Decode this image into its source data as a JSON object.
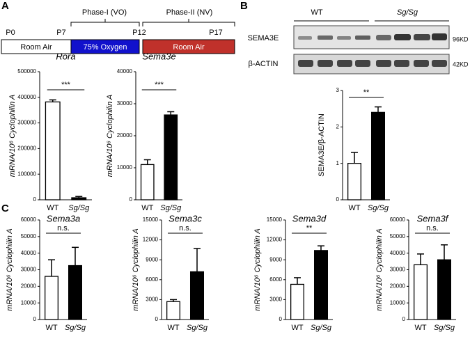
{
  "panel_labels": [
    "A",
    "B",
    "C"
  ],
  "timeline": {
    "phases": [
      "Phase-I (VO)",
      "Phase-II (NV)"
    ],
    "days": [
      "P0",
      "P7",
      "P12",
      "P17"
    ],
    "conditions": [
      "Room Air",
      "75% Oxygen",
      "Room Air"
    ]
  },
  "blot": {
    "groups": [
      "WT",
      "Sg/Sg"
    ],
    "proteins": [
      "SEMA3E",
      "β-ACTIN"
    ],
    "sizes": [
      "96KD",
      "42KD"
    ]
  },
  "chart_data": [
    {
      "type": "bar",
      "title": "Rora",
      "ylabel": "mRNA/10⁶ Cyclophilin A",
      "categories": [
        "WT",
        "Sg/Sg"
      ],
      "values": [
        382000,
        8000
      ],
      "errors": [
        8000,
        5000
      ],
      "colors": [
        "#ffffff",
        "#000000"
      ],
      "significance": "***",
      "ylim": [
        0,
        500000
      ],
      "yticks": [
        0,
        100000,
        200000,
        300000,
        400000,
        500000
      ]
    },
    {
      "type": "bar",
      "title": "Sema3e",
      "ylabel": "mRNA/10⁶ Cyclophilin A",
      "categories": [
        "WT",
        "Sg/Sg"
      ],
      "values": [
        11000,
        26500
      ],
      "errors": [
        1500,
        1000
      ],
      "colors": [
        "#ffffff",
        "#000000"
      ],
      "significance": "***",
      "ylim": [
        0,
        40000
      ],
      "yticks": [
        0,
        10000,
        20000,
        30000,
        40000
      ]
    },
    {
      "type": "bar",
      "ylabel": "SEMA3E/β-ACTIN",
      "categories": [
        "WT",
        "Sg/Sg"
      ],
      "values": [
        1.0,
        2.4
      ],
      "errors": [
        0.3,
        0.15
      ],
      "colors": [
        "#ffffff",
        "#000000"
      ],
      "significance": "**",
      "ylim": [
        0,
        3
      ],
      "yticks": [
        0,
        1,
        2,
        3
      ]
    },
    {
      "type": "bar",
      "title": "Sema3a",
      "ylabel": "mRNA/10⁶ Cyclophilin A",
      "categories": [
        "WT",
        "Sg/Sg"
      ],
      "values": [
        26000,
        32500
      ],
      "errors": [
        10000,
        11000
      ],
      "colors": [
        "#ffffff",
        "#000000"
      ],
      "significance": "n.s.",
      "ylim": [
        0,
        60000
      ],
      "yticks": [
        0,
        10000,
        20000,
        30000,
        40000,
        50000,
        60000
      ]
    },
    {
      "type": "bar",
      "title": "Sema3c",
      "ylabel": "mRNA/10⁶ Cyclophilin A",
      "categories": [
        "WT",
        "Sg/Sg"
      ],
      "values": [
        2700,
        7200
      ],
      "errors": [
        300,
        3500
      ],
      "colors": [
        "#ffffff",
        "#000000"
      ],
      "significance": "n.s.",
      "ylim": [
        0,
        15000
      ],
      "yticks": [
        0,
        3000,
        6000,
        9000,
        12000,
        15000
      ]
    },
    {
      "type": "bar",
      "title": "Sema3d",
      "ylabel": "mRNA/10⁶ Cyclophilin A",
      "categories": [
        "WT",
        "Sg/Sg"
      ],
      "values": [
        5300,
        10400
      ],
      "errors": [
        1000,
        700
      ],
      "colors": [
        "#ffffff",
        "#000000"
      ],
      "significance": "**",
      "ylim": [
        0,
        15000
      ],
      "yticks": [
        0,
        3000,
        6000,
        9000,
        12000,
        15000
      ]
    },
    {
      "type": "bar",
      "title": "Sema3f",
      "ylabel": "mRNA/10⁶ Cyclophilin A",
      "categories": [
        "WT",
        "Sg/Sg"
      ],
      "values": [
        33000,
        36000
      ],
      "errors": [
        6500,
        9000
      ],
      "colors": [
        "#ffffff",
        "#000000"
      ],
      "significance": "n.s.",
      "ylim": [
        0,
        60000
      ],
      "yticks": [
        0,
        10000,
        20000,
        30000,
        40000,
        50000,
        60000
      ]
    }
  ]
}
